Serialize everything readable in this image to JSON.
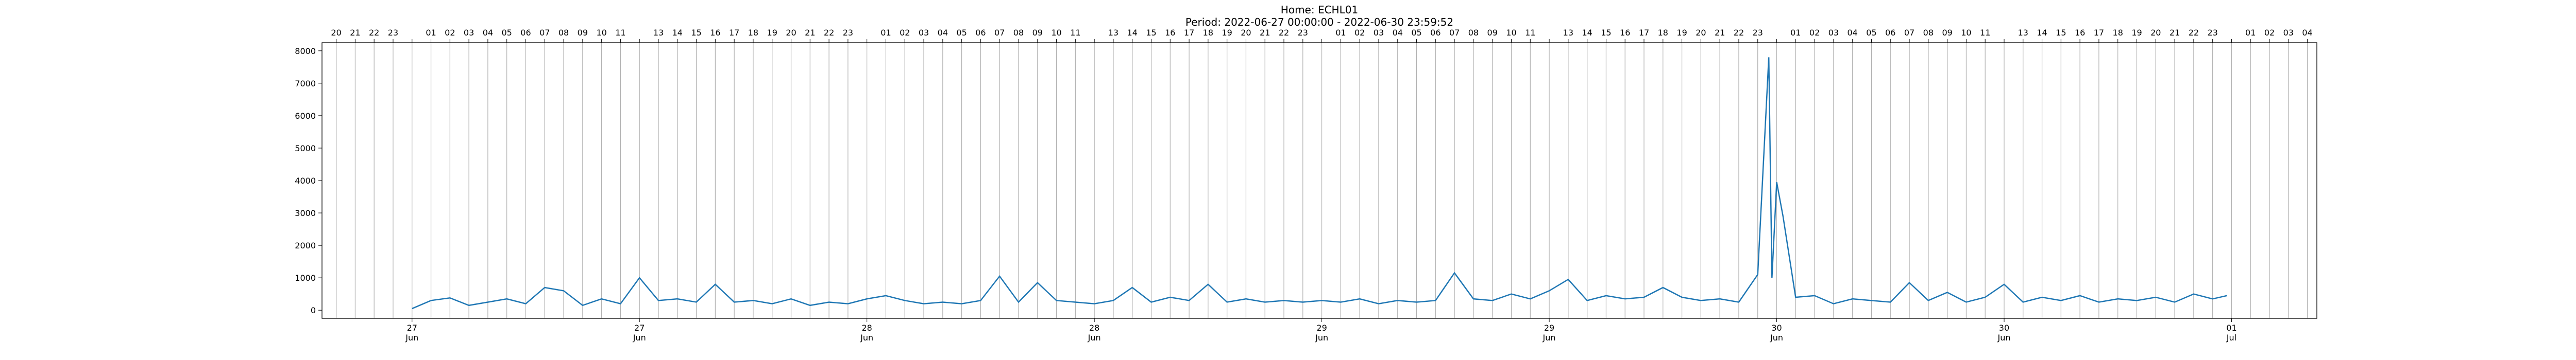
{
  "chart_data": {
    "type": "line",
    "title": "Home: ECHL01",
    "subtitle": "Period: 2022-06-27 00:00:00 - 2022-06-30 23:59:52",
    "color": "#1f77b4",
    "grid": true,
    "xlim": [
      "2022-06-26 19:15",
      "2022-07-01 04:30"
    ],
    "ylim": [
      -250,
      8250
    ],
    "yticks": [
      0,
      1000,
      2000,
      3000,
      4000,
      5000,
      6000,
      7000,
      8000
    ],
    "xticks": [
      {
        "value": "2022-06-27 00:00",
        "label": "27 Jun"
      },
      {
        "value": "2022-06-27 12:00",
        "label": "27 Jun"
      },
      {
        "value": "2022-06-28 00:00",
        "label": "28 Jun"
      },
      {
        "value": "2022-06-28 12:00",
        "label": "28 Jun"
      },
      {
        "value": "2022-06-29 00:00",
        "label": "29 Jun"
      },
      {
        "value": "2022-06-29 12:00",
        "label": "29 Jun"
      },
      {
        "value": "2022-06-30 00:00",
        "label": "30 Jun"
      },
      {
        "value": "2022-06-30 12:00",
        "label": "30 Jun"
      },
      {
        "value": "2022-07-01 00:00",
        "label": "01 Jul"
      }
    ],
    "x2ticks": [
      {
        "value": "2022-06-26 20:00",
        "label": "20"
      },
      {
        "value": "2022-06-26 21:00",
        "label": "21"
      },
      {
        "value": "2022-06-26 22:00",
        "label": "22"
      },
      {
        "value": "2022-06-26 23:00",
        "label": "23"
      },
      {
        "value": "2022-06-27 00:00",
        "label": null
      },
      {
        "value": "2022-06-27 01:00",
        "label": "01"
      },
      {
        "value": "2022-06-27 02:00",
        "label": "02"
      },
      {
        "value": "2022-06-27 03:00",
        "label": "03"
      },
      {
        "value": "2022-06-27 04:00",
        "label": "04"
      },
      {
        "value": "2022-06-27 05:00",
        "label": "05"
      },
      {
        "value": "2022-06-27 06:00",
        "label": "06"
      },
      {
        "value": "2022-06-27 07:00",
        "label": "07"
      },
      {
        "value": "2022-06-27 08:00",
        "label": "08"
      },
      {
        "value": "2022-06-27 09:00",
        "label": "09"
      },
      {
        "value": "2022-06-27 10:00",
        "label": "10"
      },
      {
        "value": "2022-06-27 11:00",
        "label": "11"
      },
      {
        "value": "2022-06-27 12:00",
        "label": null
      },
      {
        "value": "2022-06-27 13:00",
        "label": "13"
      },
      {
        "value": "2022-06-27 14:00",
        "label": "14"
      },
      {
        "value": "2022-06-27 15:00",
        "label": "15"
      },
      {
        "value": "2022-06-27 16:00",
        "label": "16"
      },
      {
        "value": "2022-06-27 17:00",
        "label": "17"
      },
      {
        "value": "2022-06-27 18:00",
        "label": "18"
      },
      {
        "value": "2022-06-27 19:00",
        "label": "19"
      },
      {
        "value": "2022-06-27 20:00",
        "label": "20"
      },
      {
        "value": "2022-06-27 21:00",
        "label": "21"
      },
      {
        "value": "2022-06-27 22:00",
        "label": "22"
      },
      {
        "value": "2022-06-27 23:00",
        "label": "23"
      },
      {
        "value": "2022-06-28 00:00",
        "label": null
      },
      {
        "value": "2022-06-28 01:00",
        "label": "01"
      },
      {
        "value": "2022-06-28 02:00",
        "label": "02"
      },
      {
        "value": "2022-06-28 03:00",
        "label": "03"
      },
      {
        "value": "2022-06-28 04:00",
        "label": "04"
      },
      {
        "value": "2022-06-28 05:00",
        "label": "05"
      },
      {
        "value": "2022-06-28 06:00",
        "label": "06"
      },
      {
        "value": "2022-06-28 07:00",
        "label": "07"
      },
      {
        "value": "2022-06-28 08:00",
        "label": "08"
      },
      {
        "value": "2022-06-28 09:00",
        "label": "09"
      },
      {
        "value": "2022-06-28 10:00",
        "label": "10"
      },
      {
        "value": "2022-06-28 11:00",
        "label": "11"
      },
      {
        "value": "2022-06-28 12:00",
        "label": null
      },
      {
        "value": "2022-06-28 13:00",
        "label": "13"
      },
      {
        "value": "2022-06-28 14:00",
        "label": "14"
      },
      {
        "value": "2022-06-28 15:00",
        "label": "15"
      },
      {
        "value": "2022-06-28 16:00",
        "label": "16"
      },
      {
        "value": "2022-06-28 17:00",
        "label": "17"
      },
      {
        "value": "2022-06-28 18:00",
        "label": "18"
      },
      {
        "value": "2022-06-28 19:00",
        "label": "19"
      },
      {
        "value": "2022-06-28 20:00",
        "label": "20"
      },
      {
        "value": "2022-06-28 21:00",
        "label": "21"
      },
      {
        "value": "2022-06-28 22:00",
        "label": "22"
      },
      {
        "value": "2022-06-28 23:00",
        "label": "23"
      },
      {
        "value": "2022-06-29 00:00",
        "label": null
      },
      {
        "value": "2022-06-29 01:00",
        "label": "01"
      },
      {
        "value": "2022-06-29 02:00",
        "label": "02"
      },
      {
        "value": "2022-06-29 03:00",
        "label": "03"
      },
      {
        "value": "2022-06-29 04:00",
        "label": "04"
      },
      {
        "value": "2022-06-29 05:00",
        "label": "05"
      },
      {
        "value": "2022-06-29 06:00",
        "label": "06"
      },
      {
        "value": "2022-06-29 07:00",
        "label": "07"
      },
      {
        "value": "2022-06-29 08:00",
        "label": "08"
      },
      {
        "value": "2022-06-29 09:00",
        "label": "09"
      },
      {
        "value": "2022-06-29 10:00",
        "label": "10"
      },
      {
        "value": "2022-06-29 11:00",
        "label": "11"
      },
      {
        "value": "2022-06-29 12:00",
        "label": null
      },
      {
        "value": "2022-06-29 13:00",
        "label": "13"
      },
      {
        "value": "2022-06-29 14:00",
        "label": "14"
      },
      {
        "value": "2022-06-29 15:00",
        "label": "15"
      },
      {
        "value": "2022-06-29 16:00",
        "label": "16"
      },
      {
        "value": "2022-06-29 17:00",
        "label": "17"
      },
      {
        "value": "2022-06-29 18:00",
        "label": "18"
      },
      {
        "value": "2022-06-29 19:00",
        "label": "19"
      },
      {
        "value": "2022-06-29 20:00",
        "label": "20"
      },
      {
        "value": "2022-06-29 21:00",
        "label": "21"
      },
      {
        "value": "2022-06-29 22:00",
        "label": "22"
      },
      {
        "value": "2022-06-29 23:00",
        "label": "23"
      },
      {
        "value": "2022-06-30 00:00",
        "label": null
      },
      {
        "value": "2022-06-30 01:00",
        "label": "01"
      },
      {
        "value": "2022-06-30 02:00",
        "label": "02"
      },
      {
        "value": "2022-06-30 03:00",
        "label": "03"
      },
      {
        "value": "2022-06-30 04:00",
        "label": "04"
      },
      {
        "value": "2022-06-30 05:00",
        "label": "05"
      },
      {
        "value": "2022-06-30 06:00",
        "label": "06"
      },
      {
        "value": "2022-06-30 07:00",
        "label": "07"
      },
      {
        "value": "2022-06-30 08:00",
        "label": "08"
      },
      {
        "value": "2022-06-30 09:00",
        "label": "09"
      },
      {
        "value": "2022-06-30 10:00",
        "label": "10"
      },
      {
        "value": "2022-06-30 11:00",
        "label": "11"
      },
      {
        "value": "2022-06-30 12:00",
        "label": null
      },
      {
        "value": "2022-06-30 13:00",
        "label": "13"
      },
      {
        "value": "2022-06-30 14:00",
        "label": "14"
      },
      {
        "value": "2022-06-30 15:00",
        "label": "15"
      },
      {
        "value": "2022-06-30 16:00",
        "label": "16"
      },
      {
        "value": "2022-06-30 17:00",
        "label": "17"
      },
      {
        "value": "2022-06-30 18:00",
        "label": "18"
      },
      {
        "value": "2022-06-30 19:00",
        "label": "19"
      },
      {
        "value": "2022-06-30 20:00",
        "label": "20"
      },
      {
        "value": "2022-06-30 21:00",
        "label": "21"
      },
      {
        "value": "2022-06-30 22:00",
        "label": "22"
      },
      {
        "value": "2022-06-30 23:00",
        "label": "23"
      },
      {
        "value": "2022-07-01 00:00",
        "label": null
      },
      {
        "value": "2022-07-01 01:00",
        "label": "01"
      },
      {
        "value": "2022-07-01 02:00",
        "label": "02"
      },
      {
        "value": "2022-07-01 03:00",
        "label": "03"
      },
      {
        "value": "2022-07-01 04:00",
        "label": "04"
      }
    ],
    "x": [
      "2022-06-27 00:00",
      "2022-06-27 01:00",
      "2022-06-27 02:00",
      "2022-06-27 03:00",
      "2022-06-27 04:00",
      "2022-06-27 05:00",
      "2022-06-27 06:00",
      "2022-06-27 07:00",
      "2022-06-27 08:00",
      "2022-06-27 09:00",
      "2022-06-27 10:00",
      "2022-06-27 11:00",
      "2022-06-27 12:00",
      "2022-06-27 13:00",
      "2022-06-27 14:00",
      "2022-06-27 15:00",
      "2022-06-27 16:00",
      "2022-06-27 17:00",
      "2022-06-27 18:00",
      "2022-06-27 19:00",
      "2022-06-27 20:00",
      "2022-06-27 21:00",
      "2022-06-27 22:00",
      "2022-06-27 23:00",
      "2022-06-28 00:00",
      "2022-06-28 01:00",
      "2022-06-28 02:00",
      "2022-06-28 03:00",
      "2022-06-28 04:00",
      "2022-06-28 05:00",
      "2022-06-28 06:00",
      "2022-06-28 07:00",
      "2022-06-28 08:00",
      "2022-06-28 09:00",
      "2022-06-28 10:00",
      "2022-06-28 11:00",
      "2022-06-28 12:00",
      "2022-06-28 13:00",
      "2022-06-28 14:00",
      "2022-06-28 15:00",
      "2022-06-28 16:00",
      "2022-06-28 17:00",
      "2022-06-28 18:00",
      "2022-06-28 19:00",
      "2022-06-28 20:00",
      "2022-06-28 21:00",
      "2022-06-28 22:00",
      "2022-06-28 23:00",
      "2022-06-29 00:00",
      "2022-06-29 01:00",
      "2022-06-29 02:00",
      "2022-06-29 03:00",
      "2022-06-29 04:00",
      "2022-06-29 05:00",
      "2022-06-29 06:00",
      "2022-06-29 07:00",
      "2022-06-29 08:00",
      "2022-06-29 09:00",
      "2022-06-29 10:00",
      "2022-06-29 11:00",
      "2022-06-29 12:00",
      "2022-06-29 13:00",
      "2022-06-29 14:00",
      "2022-06-29 15:00",
      "2022-06-29 16:00",
      "2022-06-29 17:00",
      "2022-06-29 18:00",
      "2022-06-29 19:00",
      "2022-06-29 20:00",
      "2022-06-29 21:00",
      "2022-06-29 22:00",
      "2022-06-29 23:00",
      "2022-06-29 23:35",
      "2022-06-29 23:45",
      "2022-06-30 00:00",
      "2022-06-30 00:20",
      "2022-06-30 01:00",
      "2022-06-30 02:00",
      "2022-06-30 03:00",
      "2022-06-30 04:00",
      "2022-06-30 05:00",
      "2022-06-30 06:00",
      "2022-06-30 07:00",
      "2022-06-30 08:00",
      "2022-06-30 09:00",
      "2022-06-30 10:00",
      "2022-06-30 11:00",
      "2022-06-30 12:00",
      "2022-06-30 13:00",
      "2022-06-30 14:00",
      "2022-06-30 15:00",
      "2022-06-30 16:00",
      "2022-06-30 17:00",
      "2022-06-30 18:00",
      "2022-06-30 19:00",
      "2022-06-30 20:00",
      "2022-06-30 21:00",
      "2022-06-30 22:00",
      "2022-06-30 23:00",
      "2022-06-30 23:45"
    ],
    "values": [
      50,
      300,
      380,
      150,
      250,
      350,
      200,
      700,
      600,
      150,
      350,
      200,
      1000,
      300,
      350,
      250,
      800,
      250,
      300,
      200,
      350,
      150,
      250,
      200,
      350,
      450,
      300,
      200,
      250,
      200,
      300,
      1050,
      250,
      850,
      300,
      250,
      200,
      300,
      700,
      250,
      400,
      300,
      800,
      250,
      350,
      250,
      300,
      250,
      300,
      250,
      350,
      200,
      300,
      250,
      300,
      1150,
      350,
      300,
      500,
      350,
      600,
      950,
      300,
      450,
      350,
      400,
      700,
      400,
      300,
      350,
      250,
      1100,
      7800,
      1000,
      3950,
      2900,
      400,
      450,
      200,
      350,
      300,
      250,
      850,
      300,
      550,
      250,
      400,
      800,
      250,
      400,
      300,
      450,
      250,
      350,
      300,
      400,
      250,
      500,
      350,
      450
    ]
  }
}
